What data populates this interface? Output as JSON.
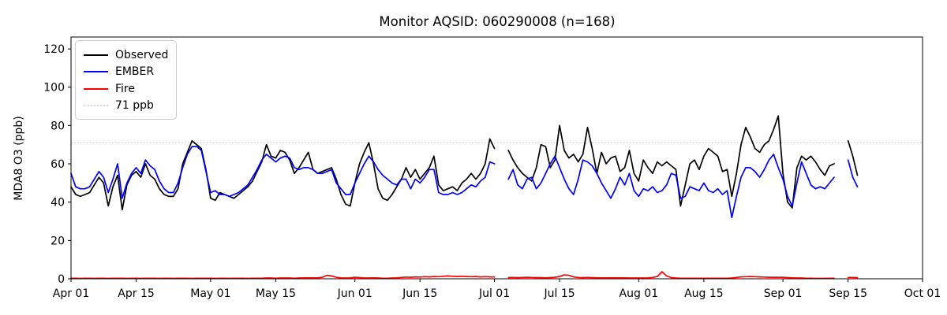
{
  "chart_data": {
    "type": "line",
    "title": "Monitor AQSID: 060290008 (n=168)",
    "xlabel": "",
    "ylabel": "MDA8 O3 (ppb)",
    "grid": false,
    "legend_position": "upper left",
    "x_unit": "days since Apr 01 (daily values)",
    "xlim": [
      0,
      183
    ],
    "ylim": [
      0,
      126.2
    ],
    "yticks": [
      0,
      20,
      40,
      60,
      80,
      100,
      120
    ],
    "xticks": [
      {
        "day": 0,
        "label": "Apr 01"
      },
      {
        "day": 14,
        "label": "Apr 15"
      },
      {
        "day": 30,
        "label": "May 01"
      },
      {
        "day": 44,
        "label": "May 15"
      },
      {
        "day": 61,
        "label": "Jun 01"
      },
      {
        "day": 75,
        "label": "Jun 15"
      },
      {
        "day": 91,
        "label": "Jul 01"
      },
      {
        "day": 105,
        "label": "Jul 15"
      },
      {
        "day": 122,
        "label": "Aug 01"
      },
      {
        "day": 136,
        "label": "Aug 15"
      },
      {
        "day": 153,
        "label": "Sep 01"
      },
      {
        "day": 167,
        "label": "Sep 15"
      },
      {
        "day": 183,
        "label": "Oct 01"
      }
    ],
    "reference_line": {
      "label": "71 ppb",
      "value": 71,
      "color": "#d3d3d3",
      "style": "dotted"
    },
    "series": [
      {
        "name": "Observed",
        "color": "#000000",
        "values": [
          48,
          44,
          43,
          44,
          45,
          49,
          53,
          50,
          38,
          48,
          54,
          36,
          49,
          54,
          56,
          53,
          60,
          54,
          52,
          47,
          44,
          43,
          43,
          47,
          60,
          66,
          72,
          70,
          68,
          57,
          42,
          41,
          45,
          44,
          43,
          42,
          44,
          46,
          48,
          51,
          56,
          61,
          70,
          64,
          63,
          67,
          66,
          62,
          55,
          58,
          62,
          66,
          57,
          55,
          56,
          57,
          58,
          52,
          44,
          39,
          38,
          50,
          60,
          66,
          71,
          60,
          47,
          42,
          41,
          44,
          48,
          52,
          58,
          53,
          57,
          52,
          55,
          58,
          64,
          49,
          46,
          47,
          48,
          46,
          50,
          52,
          55,
          52,
          55,
          60,
          73,
          68,
          null,
          null,
          67,
          62,
          58,
          55,
          53,
          51,
          58,
          70,
          69,
          58,
          62,
          80,
          67,
          63,
          65,
          61,
          65,
          79,
          68,
          55,
          66,
          60,
          63,
          64,
          56,
          58,
          67,
          55,
          51,
          62,
          58,
          55,
          61,
          59,
          61,
          59,
          57,
          38,
          49,
          60,
          62,
          57,
          64,
          68,
          66,
          64,
          56,
          57,
          43,
          55,
          70,
          79,
          74,
          68,
          66,
          70,
          72,
          78,
          85,
          55,
          40,
          37,
          58,
          64,
          62,
          64,
          61,
          57,
          54,
          59,
          60,
          null,
          null,
          72,
          64,
          54
        ]
      },
      {
        "name": "EMBER",
        "color": "#0000ff",
        "values": [
          55,
          48,
          47,
          47,
          48,
          52,
          56,
          53,
          45,
          52,
          60,
          42,
          50,
          55,
          58,
          55,
          62,
          59,
          57,
          51,
          47,
          45,
          45,
          50,
          58,
          65,
          69,
          69,
          67,
          56,
          45,
          46,
          44,
          44,
          43,
          44,
          45,
          47,
          49,
          53,
          57,
          62,
          65,
          63,
          61,
          63,
          64,
          63,
          58,
          57,
          58,
          58,
          57,
          55,
          55,
          56,
          57,
          50,
          47,
          44,
          44,
          50,
          55,
          60,
          64,
          61,
          57,
          54,
          52,
          50,
          49,
          52,
          52,
          47,
          52,
          50,
          53,
          57,
          57,
          45,
          44,
          44,
          45,
          44,
          45,
          47,
          49,
          48,
          51,
          53,
          61,
          60,
          null,
          null,
          52,
          57,
          49,
          47,
          52,
          53,
          47,
          50,
          55,
          60,
          64,
          58,
          52,
          47,
          44,
          52,
          62,
          61,
          59,
          55,
          50,
          46,
          42,
          47,
          53,
          49,
          55,
          46,
          43,
          47,
          46,
          48,
          45,
          46,
          49,
          55,
          54,
          42,
          43,
          48,
          47,
          46,
          50,
          46,
          45,
          47,
          44,
          46,
          32,
          43,
          53,
          58,
          58,
          56,
          53,
          57,
          62,
          65,
          58,
          52,
          43,
          38,
          50,
          61,
          55,
          49,
          47,
          48,
          47,
          50,
          53,
          null,
          null,
          62,
          53,
          48
        ]
      },
      {
        "name": "Fire",
        "color": "#ff0000",
        "values": [
          0.3,
          0.3,
          0.2,
          0.3,
          0.3,
          0.2,
          0.3,
          0.3,
          0.2,
          0.3,
          0.3,
          0.3,
          0.2,
          0.3,
          0.3,
          0.2,
          0.3,
          0.3,
          0.3,
          0.2,
          0.3,
          0.3,
          0.2,
          0.3,
          0.3,
          0.3,
          0.2,
          0.3,
          0.3,
          0.3,
          0.3,
          0.2,
          0.3,
          0.3,
          0.2,
          0.3,
          0.3,
          0.3,
          0.2,
          0.3,
          0.3,
          0.3,
          0.4,
          0.4,
          0.3,
          0.4,
          0.4,
          0.4,
          0.3,
          0.4,
          0.5,
          0.5,
          0.5,
          0.5,
          0.8,
          1.8,
          1.5,
          0.8,
          0.5,
          0.4,
          0.5,
          0.8,
          0.6,
          0.4,
          0.4,
          0.5,
          0.4,
          0.3,
          0.3,
          0.4,
          0.5,
          0.7,
          0.9,
          0.8,
          1.0,
          0.9,
          1.1,
          1.0,
          1.2,
          1.1,
          1.3,
          1.5,
          1.3,
          1.2,
          1.3,
          1.2,
          1.1,
          1.2,
          1.0,
          1.1,
          1.0,
          1.0,
          null,
          null,
          0.6,
          0.7,
          0.6,
          0.7,
          0.8,
          0.7,
          0.6,
          0.6,
          0.5,
          0.6,
          0.8,
          1.2,
          2.0,
          1.8,
          1.0,
          0.7,
          0.6,
          0.7,
          0.6,
          0.5,
          0.5,
          0.5,
          0.5,
          0.5,
          0.5,
          0.5,
          0.4,
          0.4,
          0.4,
          0.4,
          0.5,
          0.7,
          1.2,
          3.7,
          1.5,
          0.6,
          0.4,
          0.3,
          0.3,
          0.3,
          0.3,
          0.3,
          0.3,
          0.3,
          0.3,
          0.3,
          0.3,
          0.3,
          0.4,
          0.7,
          1.0,
          1.1,
          1.2,
          1.1,
          1.0,
          0.9,
          0.8,
          0.8,
          0.8,
          0.8,
          0.6,
          0.5,
          0.4,
          0.4,
          0.3,
          0.3,
          0.2,
          0.2,
          0.2,
          0.3,
          0.3,
          null,
          null,
          0.7,
          0.7,
          0.6
        ]
      }
    ],
    "legend_entries": [
      "Observed",
      "EMBER",
      "Fire",
      "71 ppb"
    ]
  }
}
